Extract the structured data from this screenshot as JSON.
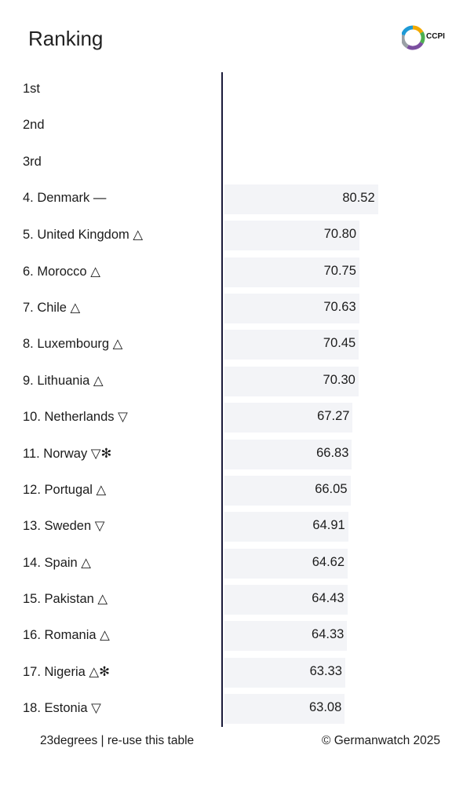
{
  "header": {
    "title": "Ranking",
    "logo_text": "CCPI"
  },
  "footer": {
    "left_text": "23degrees | re-use this table",
    "right_text": "© Germanwatch 2025"
  },
  "colors": {
    "bar": "#f3f4f7",
    "axis": "#1b1b3a",
    "text": "#1c1c1c"
  },
  "chart_data": {
    "type": "bar",
    "orientation": "horizontal",
    "title": "Ranking",
    "categories": [
      "1st",
      "2nd",
      "3rd",
      "4. Denmark —",
      "5. United Kingdom △",
      "6. Morocco △",
      "7. Chile △",
      "8. Luxembourg △",
      "9. Lithuania △",
      "10. Netherlands ▽",
      "11. Norway ▽✻",
      "12. Portugal △",
      "13. Sweden ▽",
      "14. Spain △",
      "15. Pakistan △",
      "16. Romania △",
      "17. Nigeria △✻",
      "18. Estonia ▽"
    ],
    "values": [
      null,
      null,
      null,
      80.52,
      70.8,
      70.75,
      70.63,
      70.45,
      70.3,
      67.27,
      66.83,
      66.05,
      64.91,
      64.62,
      64.43,
      64.33,
      63.33,
      63.08
    ],
    "value_labels": [
      "",
      "",
      "",
      "80.52",
      "70.80",
      "70.75",
      "70.63",
      "70.45",
      "70.30",
      "67.27",
      "66.83",
      "66.05",
      "64.91",
      "64.62",
      "64.43",
      "64.33",
      "63.33",
      "63.08"
    ],
    "xlim": [
      0,
      100
    ],
    "grid": false,
    "legend": "none"
  }
}
